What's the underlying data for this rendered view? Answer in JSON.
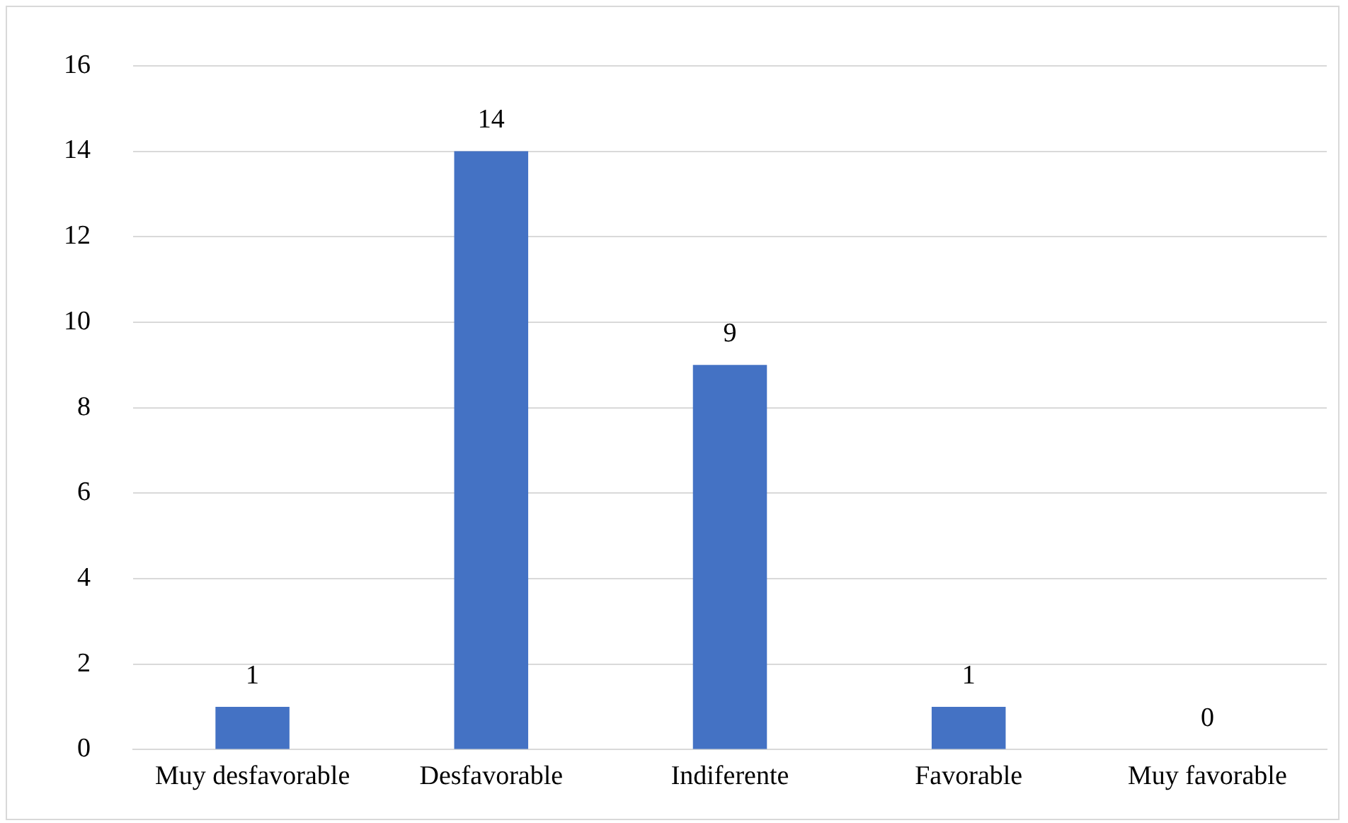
{
  "chart_data": {
    "type": "bar",
    "categories": [
      "Muy desfavorable",
      "Desfavorable",
      "Indiferente",
      "Favorable",
      "Muy favorable"
    ],
    "values": [
      1,
      14,
      9,
      1,
      0
    ],
    "color": "#4472c4",
    "ylim": [
      0,
      16
    ],
    "yticks": [
      0,
      2,
      4,
      6,
      8,
      10,
      12,
      14,
      16
    ],
    "grid": "y",
    "legend": false,
    "data_labels": true
  }
}
